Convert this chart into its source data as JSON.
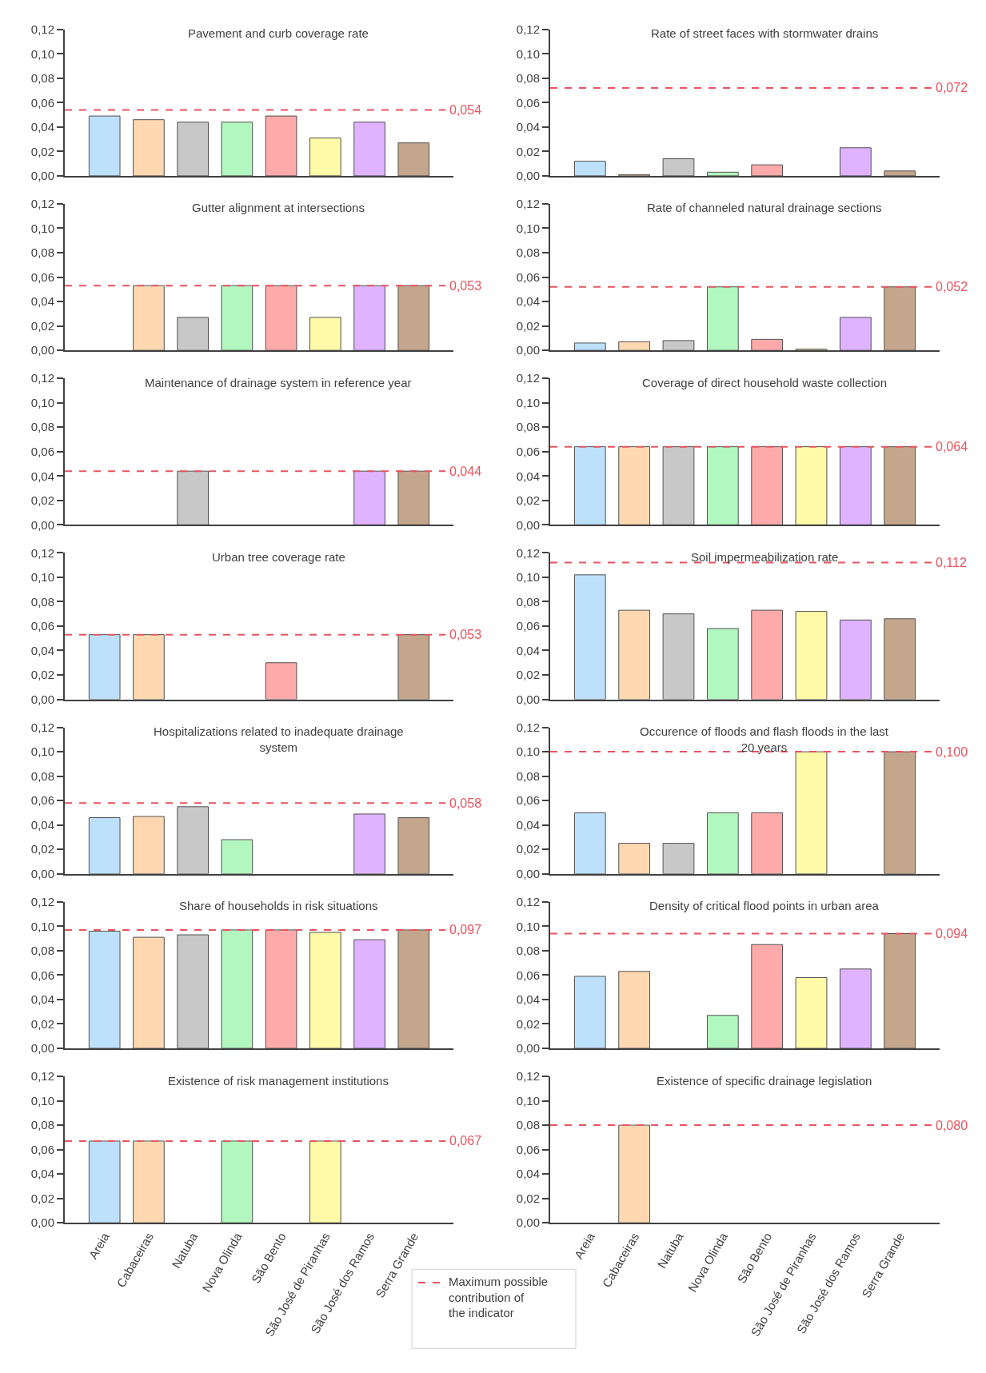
{
  "chart_data": [
    {
      "type": "bar",
      "title": "Pavement and curb coverage rate",
      "categories": [
        "Areia",
        "Cabaceiras",
        "Natuba",
        "Nova Olinda",
        "São Bento",
        "São José de Piranhas",
        "São José dos Ramos",
        "Serra Grande"
      ],
      "values": [
        0.049,
        0.046,
        0.044,
        0.044,
        0.049,
        0.031,
        0.044,
        0.027
      ],
      "colors": [
        "#bde0fb",
        "#ffd8b1",
        "#c8c8c8",
        "#b3f7c0",
        "#ffaaaa",
        "#fffaa8",
        "#dfb3ff",
        "#c4a68c"
      ],
      "ylim": [
        0,
        0.12
      ],
      "yticks": [
        {
          "value": 0,
          "label": "0,00"
        },
        {
          "value": 0.02,
          "label": "0,02"
        },
        {
          "value": 0.04,
          "label": "0,04"
        },
        {
          "value": 0.06,
          "label": "0,06"
        },
        {
          "value": 0.08,
          "label": "0,08"
        },
        {
          "value": 0.1,
          "label": "0,10"
        },
        {
          "value": 0.12,
          "label": "0,12"
        }
      ],
      "ref_lines": [
        {
          "axis": "y",
          "value": 0.054,
          "label": "0,054",
          "color": "#e8545e",
          "line_style": "dashed"
        }
      ],
      "tick_labels": "y"
    },
    {
      "type": "bar",
      "title": "Rate of street faces with stormwater drains",
      "categories": [
        "Areia",
        "Cabaceiras",
        "Natuba",
        "Nova Olinda",
        "São Bento",
        "São José de Piranhas",
        "São José dos Ramos",
        "Serra Grande"
      ],
      "values": [
        0.012,
        0.001,
        0.014,
        0.003,
        0.009,
        null,
        0.023,
        0.004
      ],
      "colors": [
        "#bde0fb",
        "#ffd8b1",
        "#c8c8c8",
        "#b3f7c0",
        "#ffaaaa",
        "#fffaa8",
        "#dfb3ff",
        "#c4a68c"
      ],
      "ylim": [
        0,
        0.12
      ],
      "yticks": [
        {
          "value": 0,
          "label": "0,00"
        },
        {
          "value": 0.02,
          "label": "0,02"
        },
        {
          "value": 0.04,
          "label": "0,04"
        },
        {
          "value": 0.06,
          "label": "0,06"
        },
        {
          "value": 0.08,
          "label": "0,08"
        },
        {
          "value": 0.1,
          "label": "0,10"
        },
        {
          "value": 0.12,
          "label": "0,12"
        }
      ],
      "ref_lines": [
        {
          "axis": "y",
          "value": 0.072,
          "label": "0,072",
          "color": "#e8545e",
          "line_style": "dashed"
        }
      ],
      "tick_labels": "y"
    },
    {
      "type": "bar",
      "title": "Gutter alignment at intersections",
      "categories": [
        "Areia",
        "Cabaceiras",
        "Natuba",
        "Nova Olinda",
        "São Bento",
        "São José de Piranhas",
        "São José dos Ramos",
        "Serra Grande"
      ],
      "values": [
        null,
        0.053,
        0.027,
        0.053,
        0.053,
        0.027,
        0.053,
        0.053
      ],
      "colors": [
        "#bde0fb",
        "#ffd8b1",
        "#c8c8c8",
        "#b3f7c0",
        "#ffaaaa",
        "#fffaa8",
        "#dfb3ff",
        "#c4a68c"
      ],
      "ylim": [
        0,
        0.12
      ],
      "yticks": [
        {
          "value": 0,
          "label": "0,00"
        },
        {
          "value": 0.02,
          "label": "0,02"
        },
        {
          "value": 0.04,
          "label": "0,04"
        },
        {
          "value": 0.06,
          "label": "0,06"
        },
        {
          "value": 0.08,
          "label": "0,08"
        },
        {
          "value": 0.1,
          "label": "0,10"
        },
        {
          "value": 0.12,
          "label": "0,12"
        }
      ],
      "ref_lines": [
        {
          "axis": "y",
          "value": 0.053,
          "label": "0,053",
          "color": "#e8545e",
          "line_style": "dashed"
        }
      ],
      "tick_labels": "y"
    },
    {
      "type": "bar",
      "title": "Rate of channeled natural drainage sections",
      "categories": [
        "Areia",
        "Cabaceiras",
        "Natuba",
        "Nova Olinda",
        "São Bento",
        "São José de Piranhas",
        "São José dos Ramos",
        "Serra Grande"
      ],
      "values": [
        0.006,
        0.007,
        0.008,
        0.052,
        0.009,
        0.001,
        0.027,
        0.052
      ],
      "colors": [
        "#bde0fb",
        "#ffd8b1",
        "#c8c8c8",
        "#b3f7c0",
        "#ffaaaa",
        "#fffaa8",
        "#dfb3ff",
        "#c4a68c"
      ],
      "ylim": [
        0,
        0.12
      ],
      "yticks": [
        {
          "value": 0,
          "label": "0,00"
        },
        {
          "value": 0.02,
          "label": "0,02"
        },
        {
          "value": 0.04,
          "label": "0,04"
        },
        {
          "value": 0.06,
          "label": "0,06"
        },
        {
          "value": 0.08,
          "label": "0,08"
        },
        {
          "value": 0.1,
          "label": "0,10"
        },
        {
          "value": 0.12,
          "label": "0,12"
        }
      ],
      "ref_lines": [
        {
          "axis": "y",
          "value": 0.052,
          "label": "0,052",
          "color": "#e8545e",
          "line_style": "dashed"
        }
      ],
      "tick_labels": "y"
    },
    {
      "type": "bar",
      "title": "Maintenance of drainage system in reference year",
      "categories": [
        "Areia",
        "Cabaceiras",
        "Natuba",
        "Nova Olinda",
        "São Bento",
        "São José de Piranhas",
        "São José dos Ramos",
        "Serra Grande"
      ],
      "values": [
        null,
        null,
        0.044,
        null,
        null,
        null,
        0.044,
        0.044
      ],
      "colors": [
        "#bde0fb",
        "#ffd8b1",
        "#c8c8c8",
        "#b3f7c0",
        "#ffaaaa",
        "#fffaa8",
        "#dfb3ff",
        "#c4a68c"
      ],
      "ylim": [
        0,
        0.12
      ],
      "yticks": [
        {
          "value": 0,
          "label": "0,00"
        },
        {
          "value": 0.02,
          "label": "0,02"
        },
        {
          "value": 0.04,
          "label": "0,04"
        },
        {
          "value": 0.06,
          "label": "0,06"
        },
        {
          "value": 0.08,
          "label": "0,08"
        },
        {
          "value": 0.1,
          "label": "0,10"
        },
        {
          "value": 0.12,
          "label": "0,12"
        }
      ],
      "ref_lines": [
        {
          "axis": "y",
          "value": 0.044,
          "label": "0,044",
          "color": "#e8545e",
          "line_style": "dashed"
        }
      ],
      "tick_labels": "y"
    },
    {
      "type": "bar",
      "title": "Coverage of direct household waste collection",
      "categories": [
        "Areia",
        "Cabaceiras",
        "Natuba",
        "Nova Olinda",
        "São Bento",
        "São José de Piranhas",
        "São José dos Ramos",
        "Serra Grande"
      ],
      "values": [
        0.064,
        0.064,
        0.064,
        0.064,
        0.064,
        0.064,
        0.064,
        0.064
      ],
      "colors": [
        "#bde0fb",
        "#ffd8b1",
        "#c8c8c8",
        "#b3f7c0",
        "#ffaaaa",
        "#fffaa8",
        "#dfb3ff",
        "#c4a68c"
      ],
      "ylim": [
        0,
        0.12
      ],
      "yticks": [
        {
          "value": 0,
          "label": "0,00"
        },
        {
          "value": 0.02,
          "label": "0,02"
        },
        {
          "value": 0.04,
          "label": "0,04"
        },
        {
          "value": 0.06,
          "label": "0,06"
        },
        {
          "value": 0.08,
          "label": "0,08"
        },
        {
          "value": 0.1,
          "label": "0,10"
        },
        {
          "value": 0.12,
          "label": "0,12"
        }
      ],
      "ref_lines": [
        {
          "axis": "y",
          "value": 0.064,
          "label": "0,064",
          "color": "#e8545e",
          "line_style": "dashed"
        }
      ],
      "tick_labels": "y"
    },
    {
      "type": "bar",
      "title": "Urban tree coverage rate",
      "categories": [
        "Areia",
        "Cabaceiras",
        "Natuba",
        "Nova Olinda",
        "São Bento",
        "São José de Piranhas",
        "São José dos Ramos",
        "Serra Grande"
      ],
      "values": [
        0.053,
        0.053,
        null,
        null,
        0.03,
        null,
        null,
        0.053
      ],
      "colors": [
        "#bde0fb",
        "#ffd8b1",
        "#c8c8c8",
        "#b3f7c0",
        "#ffaaaa",
        "#fffaa8",
        "#dfb3ff",
        "#c4a68c"
      ],
      "ylim": [
        0,
        0.12
      ],
      "yticks": [
        {
          "value": 0,
          "label": "0,00"
        },
        {
          "value": 0.02,
          "label": "0,02"
        },
        {
          "value": 0.04,
          "label": "0,04"
        },
        {
          "value": 0.06,
          "label": "0,06"
        },
        {
          "value": 0.08,
          "label": "0,08"
        },
        {
          "value": 0.1,
          "label": "0,10"
        },
        {
          "value": 0.12,
          "label": "0,12"
        }
      ],
      "ref_lines": [
        {
          "axis": "y",
          "value": 0.053,
          "label": "0,053",
          "color": "#e8545e",
          "line_style": "dashed"
        }
      ],
      "tick_labels": "y"
    },
    {
      "type": "bar",
      "title": "Soil impermeabilization rate",
      "categories": [
        "Areia",
        "Cabaceiras",
        "Natuba",
        "Nova Olinda",
        "São Bento",
        "São José de Piranhas",
        "São José dos Ramos",
        "Serra Grande"
      ],
      "values": [
        0.102,
        0.073,
        0.07,
        0.058,
        0.073,
        0.072,
        0.065,
        0.066
      ],
      "colors": [
        "#bde0fb",
        "#ffd8b1",
        "#c8c8c8",
        "#b3f7c0",
        "#ffaaaa",
        "#fffaa8",
        "#dfb3ff",
        "#c4a68c"
      ],
      "ylim": [
        0,
        0.12
      ],
      "yticks": [
        {
          "value": 0,
          "label": "0,00"
        },
        {
          "value": 0.02,
          "label": "0,02"
        },
        {
          "value": 0.04,
          "label": "0,04"
        },
        {
          "value": 0.06,
          "label": "0,06"
        },
        {
          "value": 0.08,
          "label": "0,08"
        },
        {
          "value": 0.1,
          "label": "0,10"
        },
        {
          "value": 0.12,
          "label": "0,12"
        }
      ],
      "ref_lines": [
        {
          "axis": "y",
          "value": 0.112,
          "label": "0,112",
          "color": "#e8545e",
          "line_style": "dashed"
        }
      ],
      "tick_labels": "y"
    },
    {
      "type": "bar",
      "title": "Hospitalizations related to inadequate drainage system",
      "categories": [
        "Areia",
        "Cabaceiras",
        "Natuba",
        "Nova Olinda",
        "São Bento",
        "São José de Piranhas",
        "São José dos Ramos",
        "Serra Grande"
      ],
      "values": [
        0.046,
        0.047,
        0.055,
        0.028,
        null,
        null,
        0.049,
        0.046
      ],
      "colors": [
        "#bde0fb",
        "#ffd8b1",
        "#c8c8c8",
        "#b3f7c0",
        "#ffaaaa",
        "#fffaa8",
        "#dfb3ff",
        "#c4a68c"
      ],
      "ylim": [
        0,
        0.12
      ],
      "yticks": [
        {
          "value": 0,
          "label": "0,00"
        },
        {
          "value": 0.02,
          "label": "0,02"
        },
        {
          "value": 0.04,
          "label": "0,04"
        },
        {
          "value": 0.06,
          "label": "0,06"
        },
        {
          "value": 0.08,
          "label": "0,08"
        },
        {
          "value": 0.1,
          "label": "0,10"
        },
        {
          "value": 0.12,
          "label": "0,12"
        }
      ],
      "ref_lines": [
        {
          "axis": "y",
          "value": 0.058,
          "label": "0,058",
          "color": "#e8545e",
          "line_style": "dashed"
        }
      ],
      "tick_labels": "y"
    },
    {
      "type": "bar",
      "title": "Occurence of floods and flash floods in the last 20 years",
      "categories": [
        "Areia",
        "Cabaceiras",
        "Natuba",
        "Nova Olinda",
        "São Bento",
        "São José de Piranhas",
        "São José dos Ramos",
        "Serra Grande"
      ],
      "values": [
        0.05,
        0.025,
        0.025,
        0.05,
        0.05,
        0.1,
        null,
        0.1
      ],
      "colors": [
        "#bde0fb",
        "#ffd8b1",
        "#c8c8c8",
        "#b3f7c0",
        "#ffaaaa",
        "#fffaa8",
        "#dfb3ff",
        "#c4a68c"
      ],
      "ylim": [
        0,
        0.12
      ],
      "yticks": [
        {
          "value": 0,
          "label": "0,00"
        },
        {
          "value": 0.02,
          "label": "0,02"
        },
        {
          "value": 0.04,
          "label": "0,04"
        },
        {
          "value": 0.06,
          "label": "0,06"
        },
        {
          "value": 0.08,
          "label": "0,08"
        },
        {
          "value": 0.1,
          "label": "0,10"
        },
        {
          "value": 0.12,
          "label": "0,12"
        }
      ],
      "ref_lines": [
        {
          "axis": "y",
          "value": 0.1,
          "label": "0,100",
          "color": "#e8545e",
          "line_style": "dashed"
        }
      ],
      "tick_labels": "y"
    },
    {
      "type": "bar",
      "title": "Share of households in risk situations",
      "categories": [
        "Areia",
        "Cabaceiras",
        "Natuba",
        "Nova Olinda",
        "São Bento",
        "São José de Piranhas",
        "São José dos Ramos",
        "Serra Grande"
      ],
      "values": [
        0.096,
        0.091,
        0.093,
        0.097,
        0.097,
        0.095,
        0.089,
        0.097
      ],
      "colors": [
        "#bde0fb",
        "#ffd8b1",
        "#c8c8c8",
        "#b3f7c0",
        "#ffaaaa",
        "#fffaa8",
        "#dfb3ff",
        "#c4a68c"
      ],
      "ylim": [
        0,
        0.12
      ],
      "yticks": [
        {
          "value": 0,
          "label": "0,00"
        },
        {
          "value": 0.02,
          "label": "0,02"
        },
        {
          "value": 0.04,
          "label": "0,04"
        },
        {
          "value": 0.06,
          "label": "0,06"
        },
        {
          "value": 0.08,
          "label": "0,08"
        },
        {
          "value": 0.1,
          "label": "0,10"
        },
        {
          "value": 0.12,
          "label": "0,12"
        }
      ],
      "ref_lines": [
        {
          "axis": "y",
          "value": 0.097,
          "label": "0,097",
          "color": "#e8545e",
          "line_style": "dashed"
        }
      ],
      "tick_labels": "y"
    },
    {
      "type": "bar",
      "title": "Density of critical flood points in urban area",
      "categories": [
        "Areia",
        "Cabaceiras",
        "Natuba",
        "Nova Olinda",
        "São Bento",
        "São José de Piranhas",
        "São José dos Ramos",
        "Serra Grande"
      ],
      "values": [
        0.059,
        0.063,
        null,
        0.027,
        0.085,
        0.058,
        0.065,
        0.094
      ],
      "colors": [
        "#bde0fb",
        "#ffd8b1",
        "#c8c8c8",
        "#b3f7c0",
        "#ffaaaa",
        "#fffaa8",
        "#dfb3ff",
        "#c4a68c"
      ],
      "ylim": [
        0,
        0.12
      ],
      "yticks": [
        {
          "value": 0,
          "label": "0,00"
        },
        {
          "value": 0.02,
          "label": "0,02"
        },
        {
          "value": 0.04,
          "label": "0,04"
        },
        {
          "value": 0.06,
          "label": "0,06"
        },
        {
          "value": 0.08,
          "label": "0,08"
        },
        {
          "value": 0.1,
          "label": "0,10"
        },
        {
          "value": 0.12,
          "label": "0,12"
        }
      ],
      "ref_lines": [
        {
          "axis": "y",
          "value": 0.094,
          "label": "0,094",
          "color": "#e8545e",
          "line_style": "dashed"
        }
      ],
      "tick_labels": "y"
    },
    {
      "type": "bar",
      "title": "Existence of risk management institutions",
      "categories": [
        "Areia",
        "Cabaceiras",
        "Natuba",
        "Nova Olinda",
        "São Bento",
        "São José de Piranhas",
        "São José dos Ramos",
        "Serra Grande"
      ],
      "values": [
        0.067,
        0.067,
        null,
        0.067,
        null,
        0.067,
        null,
        null
      ],
      "colors": [
        "#bde0fb",
        "#ffd8b1",
        "#c8c8c8",
        "#b3f7c0",
        "#ffaaaa",
        "#fffaa8",
        "#dfb3ff",
        "#c4a68c"
      ],
      "ylim": [
        0,
        0.12
      ],
      "yticks": [
        {
          "value": 0,
          "label": "0,00"
        },
        {
          "value": 0.02,
          "label": "0,02"
        },
        {
          "value": 0.04,
          "label": "0,04"
        },
        {
          "value": 0.06,
          "label": "0,06"
        },
        {
          "value": 0.08,
          "label": "0,08"
        },
        {
          "value": 0.1,
          "label": "0,10"
        },
        {
          "value": 0.12,
          "label": "0,12"
        }
      ],
      "ref_lines": [
        {
          "axis": "y",
          "value": 0.067,
          "label": "0,067",
          "color": "#e8545e",
          "line_style": "dashed"
        }
      ],
      "annotations": [
        "Maximum possible contribution of the indicator"
      ]
    },
    {
      "type": "bar",
      "title": "Existence of specific drainage legislation",
      "categories": [
        "Areia",
        "Cabaceiras",
        "Natuba",
        "Nova Olinda",
        "São Bento",
        "São José de Piranhas",
        "São José dos Ramos",
        "Serra Grande"
      ],
      "values": [
        null,
        0.08,
        null,
        null,
        null,
        null,
        null,
        null
      ],
      "colors": [
        "#bde0fb",
        "#ffd8b1",
        "#c8c8c8",
        "#b3f7c0",
        "#ffaaaa",
        "#fffaa8",
        "#dfb3ff",
        "#c4a68c"
      ],
      "ylim": [
        0,
        0.12
      ],
      "yticks": [
        {
          "value": 0,
          "label": "0,00"
        },
        {
          "value": 0.02,
          "label": "0,02"
        },
        {
          "value": 0.04,
          "label": "0,04"
        },
        {
          "value": 0.06,
          "label": "0,06"
        },
        {
          "value": 0.08,
          "label": "0,08"
        },
        {
          "value": 0.1,
          "label": "0,10"
        },
        {
          "value": 0.12,
          "label": "0,12"
        }
      ],
      "ref_lines": [
        {
          "axis": "y",
          "value": 0.08,
          "label": "0,080",
          "color": "#e8545e",
          "line_style": "dashed"
        }
      ]
    }
  ]
}
